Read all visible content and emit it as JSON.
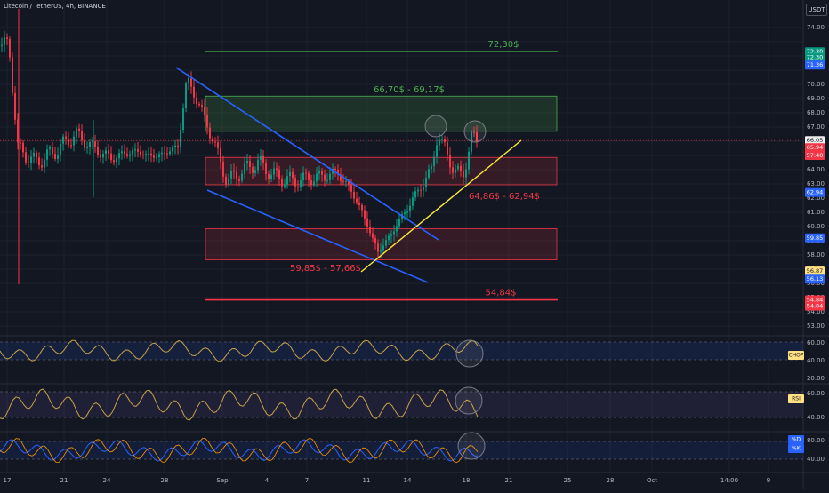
{
  "header": {
    "title": "Litecoin / TetherUS, 4h, BINANCE",
    "currency_button": "USDT"
  },
  "chart_data": {
    "type": "candlestick",
    "price_ticks": [
      "74.00",
      "72.00",
      "70.00",
      "69.00",
      "68.00",
      "67.00",
      "66.00",
      "65.00",
      "64.00",
      "63.00",
      "62.00",
      "61.00",
      "60.00",
      "59.00",
      "58.00",
      "57.00",
      "56.00",
      "55.00",
      "54.00",
      "53.00"
    ],
    "x_ticks": [
      "17",
      "21",
      "24",
      "28",
      "Sep",
      "4",
      "7",
      "11",
      "14",
      "18",
      "21",
      "25",
      "28",
      "Oct",
      "14:00",
      "9"
    ],
    "levels": [
      {
        "label": "72,30$",
        "price": 72.3,
        "color": "#4caf50"
      },
      {
        "label": "54,84$",
        "price": 54.84,
        "color": "#f23645"
      }
    ],
    "zones": [
      {
        "label": "66,70$ - 69,17$",
        "low": 66.7,
        "high": 69.17,
        "kind": "supply"
      },
      {
        "label": "64,86$ - 62,94$",
        "low": 62.94,
        "high": 64.86,
        "kind": "resistance"
      },
      {
        "label": "59,85$ - 57,66$",
        "low": 57.66,
        "high": 59.85,
        "kind": "support"
      }
    ],
    "price_badges": [
      {
        "text": "72.30",
        "price": 72.3,
        "color": "#089981"
      },
      {
        "text": "72.30",
        "price": 71.9,
        "color": "#089981"
      },
      {
        "text": "71.36",
        "price": 71.36,
        "color": "#2962ff"
      },
      {
        "text": "66.05",
        "price": 66.05,
        "color": "#eeeeee"
      },
      {
        "text": "65.94",
        "price": 65.55,
        "color": "#f23645"
      },
      {
        "text": "57:40",
        "price": 65.0,
        "color": "#f23645"
      },
      {
        "text": "62.94",
        "price": 62.4,
        "color": "#2962ff"
      },
      {
        "text": "59.85",
        "price": 59.2,
        "color": "#2962ff"
      },
      {
        "text": "56.87",
        "price": 56.87,
        "color": "#ffe082"
      },
      {
        "text": "56.13",
        "price": 56.3,
        "color": "#2962ff"
      },
      {
        "text": "54.84",
        "price": 54.84,
        "color": "#f23645"
      },
      {
        "text": "54.84",
        "price": 54.4,
        "color": "#f23645"
      }
    ],
    "indicators": [
      {
        "name": "CHOP",
        "ticks": [
          "60.00",
          "40.00",
          "20.00"
        ]
      },
      {
        "name": "RSI",
        "ticks": [
          "60.00",
          "40.00"
        ]
      },
      {
        "name": "%D",
        "ticks": [
          "80.00",
          "40.00"
        ],
        "badge2": "%K"
      }
    ]
  }
}
